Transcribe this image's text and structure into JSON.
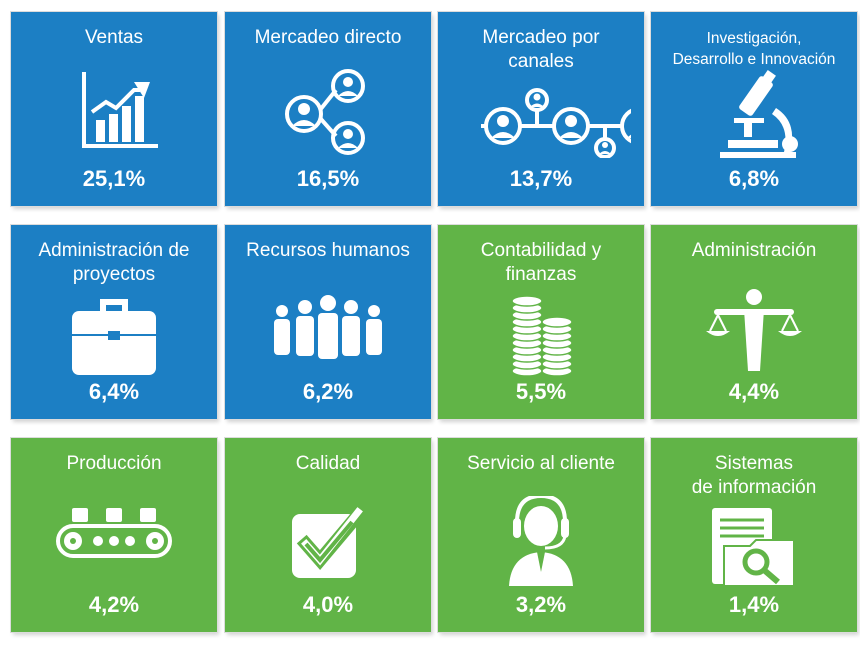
{
  "chart_data": {
    "type": "table",
    "tiles": [
      {
        "label": [
          "Ventas"
        ],
        "value": "25,1%",
        "icon": "growth-chart-icon",
        "color": "#1c7fc4"
      },
      {
        "label": [
          "Mercadeo directo"
        ],
        "value": "16,5%",
        "icon": "people-network-icon",
        "color": "#1c7fc4"
      },
      {
        "label": [
          "Mercadeo por",
          "canales"
        ],
        "value": "13,7%",
        "icon": "channel-people-icon",
        "color": "#1c7fc4"
      },
      {
        "label": [
          "Investigación,",
          "Desarrollo e  Innovación"
        ],
        "value": "6,8%",
        "icon": "microscope-icon",
        "color": "#1c7fc4"
      },
      {
        "label": [
          "Administración de",
          "proyectos"
        ],
        "value": "6,4%",
        "icon": "briefcase-icon",
        "color": "#1c7fc4"
      },
      {
        "label": [
          "Recursos humanos"
        ],
        "value": "6,2%",
        "icon": "team-people-icon",
        "color": "#1c7fc4"
      },
      {
        "label": [
          "Contabilidad y",
          "finanzas"
        ],
        "value": "5,5%",
        "icon": "coin-stacks-icon",
        "color": "#61b447"
      },
      {
        "label": [
          "Administración"
        ],
        "value": "4,4%",
        "icon": "balance-person-icon",
        "color": "#61b447"
      },
      {
        "label": [
          "Producción"
        ],
        "value": "4,2%",
        "icon": "conveyor-belt-icon",
        "color": "#61b447"
      },
      {
        "label": [
          "Calidad"
        ],
        "value": "4,0%",
        "icon": "checkbox-icon",
        "color": "#61b447"
      },
      {
        "label": [
          "Servicio al cliente"
        ],
        "value": "3,2%",
        "icon": "headset-agent-icon",
        "color": "#61b447"
      },
      {
        "label": [
          "Sistemas",
          "de información"
        ],
        "value": "1,4%",
        "icon": "folder-search-icon",
        "color": "#61b447"
      }
    ],
    "values": [
      25.1,
      16.5,
      13.7,
      6.8,
      6.4,
      6.2,
      5.5,
      4.4,
      4.2,
      4.0,
      3.2,
      1.4
    ]
  }
}
